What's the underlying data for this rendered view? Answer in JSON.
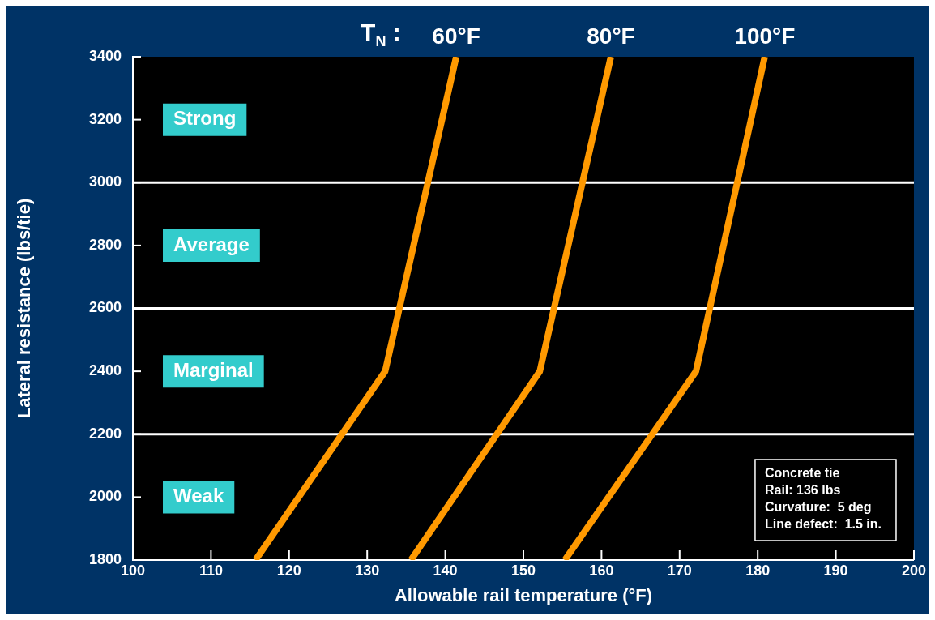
{
  "chart_data": {
    "type": "line",
    "xlabel": "Allowable rail temperature (°F)",
    "ylabel": "Lateral resistance (lbs/tie)",
    "legend_title": "T$_{N}$ :",
    "series": [
      {
        "name": "60°F",
        "color": "#ff9900",
        "x": [
          115.7,
          132.3,
          141.4
        ],
        "values": [
          1800,
          2400,
          3400
        ]
      },
      {
        "name": "80°F",
        "color": "#ff9900",
        "x": [
          135.6,
          152.1,
          161.2
        ],
        "values": [
          1800,
          2400,
          3400
        ]
      },
      {
        "name": "100°F",
        "color": "#ff9900",
        "x": [
          155.3,
          172.1,
          180.9
        ],
        "values": [
          1800,
          2400,
          3400
        ]
      }
    ],
    "xlim": [
      100,
      200
    ],
    "xticks": [
      100,
      110,
      120,
      130,
      140,
      150,
      160,
      170,
      180,
      190,
      200
    ],
    "ylim": [
      1800,
      3400
    ],
    "yticks": [
      1800,
      2000,
      2200,
      2400,
      2600,
      2800,
      3000,
      3200,
      3400
    ],
    "grid": false,
    "legend": false,
    "marker": "none",
    "line_style": "solid",
    "ref_lines": [
      {
        "axis": "y",
        "value": 2200,
        "color": "#ffffff"
      },
      {
        "axis": "y",
        "value": 2600,
        "color": "#ffffff"
      },
      {
        "axis": "y",
        "value": 3000,
        "color": "#ffffff"
      }
    ],
    "annotations": [
      "Strong",
      "Average",
      "Marginal",
      "Weak",
      "Concrete tie",
      "Rail: 136 lbs",
      "Curvature:  5 deg",
      "Line defect:  1.5 in."
    ]
  }
}
